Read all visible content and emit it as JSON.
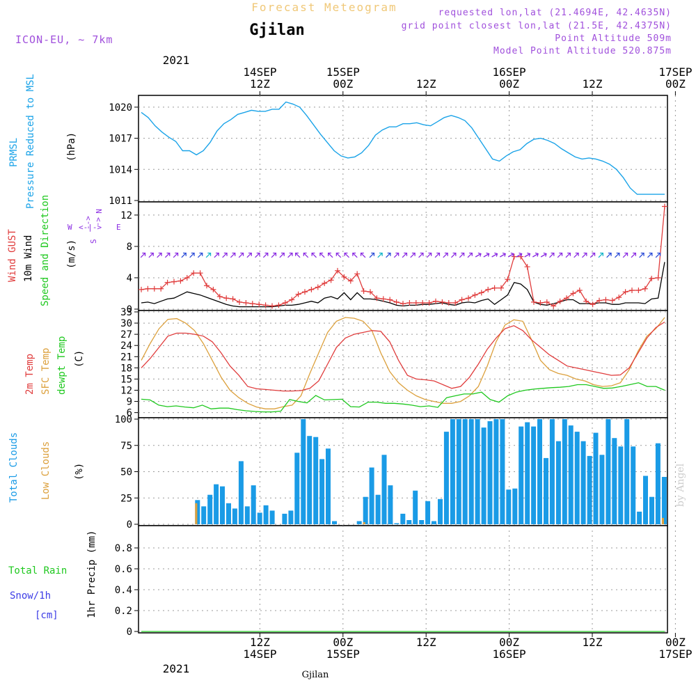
{
  "header": {
    "top_title": "Forecast Meteogram",
    "location": "Gjilan",
    "model": "ICON-EU, ~ 7km",
    "requested": "requested lon,lat (21.4694E, 42.4635N)",
    "gridpoint": "grid point closest lon,lat (21.5E, 42.4375N)",
    "point_alt": "Point Altitude 509m",
    "model_alt": "Model Point Altitude 520.875m",
    "footer_location": "Gjilan",
    "watermark": "by Angel"
  },
  "time_axis": {
    "top_year": "2021",
    "bottom_year": "2021",
    "ticks": [
      {
        "t": 12,
        "top": [
          "14SEP",
          "12Z"
        ],
        "bottom": [
          "12Z",
          "14SEP"
        ]
      },
      {
        "t": 24,
        "top": [
          "15SEP",
          "00Z"
        ],
        "bottom": [
          "00Z",
          "15SEP"
        ]
      },
      {
        "t": 36,
        "top": [
          "12Z"
        ],
        "bottom": [
          "12Z"
        ]
      },
      {
        "t": 48,
        "top": [
          "16SEP",
          "00Z"
        ],
        "bottom": [
          "00Z",
          "16SEP"
        ]
      },
      {
        "t": 60,
        "top": [
          "12Z"
        ],
        "bottom": [
          "12Z"
        ]
      },
      {
        "t": 72,
        "top": [
          "17SEP",
          "00Z"
        ],
        "bottom": [
          "00Z",
          "17SEP"
        ]
      }
    ]
  },
  "panel_labels": {
    "prmsl": [
      "PRMSL",
      "Pressure Reduced to MSL"
    ],
    "prmsl_unit": "(hPa)",
    "wind_gust": "Wind GUST",
    "wind_10m": "10m Wind",
    "wind_dir": "Speed and Direction",
    "wind_unit": "(m/s)",
    "compass_ns": [
      "N",
      "<-",
      "-->",
      "S"
    ],
    "compass_we": [
      "W",
      "<-|->",
      "E"
    ],
    "temp_2m": "2m Temp",
    "temp_sfc": "SFC Temp",
    "temp_dew": "dewpt Temp",
    "temp_unit": "(C)",
    "clouds_total": "Total Clouds",
    "clouds_low": "Low Clouds",
    "clouds_unit": "(%)",
    "rain_total": "Total  Rain",
    "snow": "Snow/1h",
    "snow_unit": "[cm]",
    "precip_unit": "1hr Precip (mm)"
  },
  "colors": {
    "pressure": "#1aa3e8",
    "gust": "#e03c3c",
    "wind": "#000000",
    "arrow_purple": "#8a2be2",
    "arrow_blue": "#2a4bd7",
    "arrow_cyan": "#13b5c8",
    "temp2m": "#e03c3c",
    "sfc": "#dca03c",
    "dew": "#1ec81e",
    "total_clouds": "#1a9be6",
    "low_clouds": "#dca03c",
    "rain": "#1ec81e",
    "snow": "#3c3ce6",
    "header_purple": "#a050dc",
    "header_orange": "#f0c878"
  },
  "chart_data": [
    {
      "type": "line",
      "series": [
        {
          "name": "PRMSL",
          "x": [
            0,
            1,
            2,
            3,
            4,
            5,
            6,
            7,
            8,
            9,
            10,
            11,
            12,
            13,
            14,
            15,
            16,
            17,
            18,
            19,
            20,
            21,
            22,
            23,
            24,
            25,
            26,
            27,
            28,
            29,
            30,
            31,
            32,
            33,
            34,
            35,
            36,
            37,
            38,
            39,
            40,
            41,
            42,
            43,
            44,
            45,
            46,
            47,
            48,
            49,
            50,
            51,
            52,
            53,
            54,
            55,
            56,
            57,
            58,
            59,
            60,
            61,
            62,
            63,
            64,
            65,
            66,
            67,
            68,
            69,
            70,
            71,
            72,
            73,
            74,
            75,
            76
          ],
          "values": [
            1019.5,
            1019.0,
            1018.2,
            1017.6,
            1017.1,
            1016.7,
            1015.8,
            1015.8,
            1015.4,
            1015.8,
            1016.6,
            1017.7,
            1018.4,
            1018.8,
            1019.3,
            1019.5,
            1019.7,
            1019.6,
            1019.6,
            1019.8,
            1019.8,
            1020.5,
            1020.3,
            1020.0,
            1019.2,
            1018.3,
            1017.4,
            1016.6,
            1015.8,
            1015.3,
            1015.1,
            1015.2,
            1015.6,
            1016.3,
            1017.3,
            1017.8,
            1018.1,
            1018.1,
            1018.4,
            1018.4,
            1018.5,
            1018.3,
            1018.2,
            1018.6,
            1019.0,
            1019.2,
            1019.0,
            1018.7,
            1018.0,
            1017.0,
            1016.0,
            1015.0,
            1014.8,
            1015.3,
            1015.7,
            1015.9,
            1016.5,
            1016.9,
            1017.0,
            1016.8,
            1016.5,
            1016.0,
            1015.6,
            1015.2,
            1015.0,
            1015.1,
            1015.0,
            1014.8,
            1014.5,
            1014.0,
            1013.2,
            1012.2,
            1011.6,
            1011.6,
            1011.6,
            1011.6,
            1011.6
          ]
        }
      ],
      "ylim": [
        1011,
        1021
      ],
      "yticks": [
        1011,
        1014,
        1017,
        1020
      ]
    },
    {
      "type": "line",
      "series": [
        {
          "name": "Wind GUST",
          "values": [
            2.5,
            2.6,
            2.6,
            2.6,
            3.4,
            3.5,
            3.6,
            4.0,
            4.6,
            4.6,
            3.0,
            2.5,
            1.6,
            1.4,
            1.3,
            0.9,
            0.8,
            0.7,
            0.6,
            0.5,
            0.4,
            0.5,
            0.8,
            1.2,
            1.9,
            2.2,
            2.5,
            2.8,
            3.3,
            3.7,
            4.9,
            4.1,
            3.6,
            4.5,
            2.3,
            2.2,
            1.4,
            1.3,
            1.2,
            0.9,
            0.7,
            0.8,
            0.8,
            0.8,
            0.8,
            1.0,
            0.9,
            0.8,
            0.8,
            1.2,
            1.4,
            1.8,
            2.1,
            2.5,
            2.7,
            2.7,
            3.8,
            6.7,
            6.7,
            5.4,
            0.9,
            0.8,
            0.9,
            0.4,
            1.0,
            1.4,
            2.0,
            2.4,
            1.0,
            0.6,
            1.1,
            1.2,
            1.1,
            1.5,
            2.2,
            2.4,
            2.4,
            2.6,
            3.9,
            4.0,
            13.1
          ]
        },
        {
          "name": "10m Wind",
          "values": [
            0.8,
            0.9,
            0.7,
            1.0,
            1.3,
            1.4,
            1.8,
            2.2,
            2.0,
            1.8,
            1.5,
            1.2,
            0.9,
            0.6,
            0.4,
            0.3,
            0.3,
            0.3,
            0.3,
            0.3,
            0.3,
            0.4,
            0.5,
            0.5,
            0.6,
            0.8,
            1.0,
            0.8,
            1.4,
            1.6,
            1.3,
            2.1,
            1.2,
            2.1,
            1.3,
            1.3,
            1.2,
            1.0,
            0.8,
            0.5,
            0.4,
            0.5,
            0.5,
            0.6,
            0.6,
            0.7,
            0.8,
            0.6,
            0.5,
            0.8,
            0.9,
            0.8,
            1.1,
            1.3,
            0.6,
            1.2,
            1.8,
            3.4,
            3.2,
            2.5,
            0.9,
            0.6,
            0.5,
            0.7,
            0.9,
            1.2,
            1.2,
            0.7,
            0.7,
            0.7,
            0.8,
            0.8,
            0.6,
            0.6,
            0.8,
            0.8,
            0.8,
            0.7,
            1.3,
            1.4,
            6.0
          ]
        }
      ],
      "ylim": [
        0,
        13.5
      ],
      "yticks": [
        0,
        4,
        8,
        12
      ]
    },
    {
      "type": "line",
      "series": [
        {
          "name": "2m Temp",
          "values": [
            18.0,
            20.5,
            23.5,
            26.5,
            27.3,
            27.3,
            27.0,
            26.5,
            25.0,
            22.0,
            18.5,
            16.0,
            13.0,
            12.4,
            12.2,
            12.0,
            11.8,
            11.8,
            11.9,
            12.5,
            14.5,
            19.0,
            23.5,
            26.0,
            27.0,
            27.5,
            28.0,
            27.8,
            25.0,
            20.0,
            16.0,
            15.0,
            14.8,
            14.5,
            13.5,
            12.5,
            13.0,
            15.5,
            19.0,
            23.0,
            26.0,
            28.5,
            29.3,
            28.0,
            25.5,
            23.5,
            21.5,
            20.0,
            18.5,
            18.0,
            17.5,
            17.0,
            16.5,
            16.0,
            16.1,
            18.0,
            22.0,
            26.0,
            28.8,
            30.3
          ]
        },
        {
          "name": "SFC Temp",
          "values": [
            20.0,
            24.5,
            28.5,
            31.0,
            31.2,
            30.0,
            28.0,
            24.5,
            20.0,
            15.5,
            12.0,
            10.0,
            8.5,
            7.5,
            7.0,
            7.0,
            7.6,
            8.0,
            10.5,
            16.5,
            22.0,
            27.5,
            30.5,
            31.5,
            31.3,
            30.5,
            28.0,
            22.0,
            17.0,
            14.0,
            12.0,
            10.5,
            9.5,
            9.0,
            8.5,
            8.5,
            9.0,
            10.5,
            13.0,
            18.5,
            25.0,
            29.5,
            30.9,
            30.5,
            25.5,
            20.0,
            17.5,
            16.5,
            16.0,
            15.0,
            14.5,
            13.5,
            13.0,
            13.2,
            14.0,
            17.5,
            22.5,
            26.5,
            28.5,
            31.5
          ]
        },
        {
          "name": "dewpt Temp",
          "values": [
            9.6,
            9.4,
            8.0,
            7.6,
            7.8,
            7.5,
            7.3,
            8.0,
            7.0,
            7.2,
            7.2,
            6.8,
            6.5,
            6.3,
            6.2,
            6.2,
            6.4,
            9.5,
            9.0,
            8.6,
            10.6,
            9.4,
            9.5,
            9.6,
            7.6,
            7.5,
            8.8,
            8.8,
            8.5,
            8.5,
            8.3,
            8.0,
            7.6,
            7.8,
            7.4,
            10.0,
            10.5,
            11.0,
            11.0,
            11.5,
            9.5,
            8.8,
            10.5,
            11.5,
            12.0,
            12.3,
            12.5,
            12.7,
            12.8,
            13.0,
            13.5,
            13.5,
            13.0,
            12.5,
            12.6,
            13.0,
            13.5,
            14.0,
            13.0,
            13.0,
            12.0
          ]
        }
      ],
      "ylim": [
        5,
        33
      ],
      "yticks": [
        6,
        9,
        12,
        15,
        18,
        21,
        24,
        27,
        30,
        33
      ]
    },
    {
      "type": "bar",
      "series": [
        {
          "name": "Total Clouds",
          "values": [
            0,
            0,
            0,
            0,
            0,
            0,
            0,
            0,
            0,
            23,
            17,
            28,
            38,
            36,
            20,
            15,
            60,
            17,
            37,
            11,
            18,
            13,
            0,
            10,
            13,
            68,
            100,
            84,
            83,
            62,
            72,
            3,
            0,
            0,
            0,
            3,
            26,
            54,
            28,
            66,
            37,
            1,
            10,
            4,
            32,
            4,
            22,
            3,
            24,
            88,
            100,
            100,
            100,
            100,
            100,
            92,
            98,
            100,
            100,
            33,
            34,
            93,
            97,
            93,
            100,
            63,
            100,
            79,
            100,
            94,
            88,
            79,
            65,
            87,
            66,
            100,
            82,
            74,
            100,
            74,
            12,
            46,
            26,
            77,
            45
          ]
        },
        {
          "name": "Low Clouds",
          "values": [
            0,
            0,
            0,
            0,
            0,
            0,
            0,
            0,
            0,
            20,
            0,
            0,
            0,
            0,
            0,
            0,
            0,
            0,
            0,
            0,
            0,
            0,
            0,
            0,
            0,
            0,
            0,
            0,
            0,
            0,
            0,
            0,
            0,
            0,
            0,
            0,
            2,
            0,
            0,
            0,
            0,
            0,
            0,
            0,
            0,
            0,
            0,
            0,
            0,
            0,
            0,
            0,
            0,
            0,
            0,
            0,
            0,
            0,
            0,
            0,
            0,
            0,
            0,
            0,
            0,
            0,
            0,
            0,
            0,
            0,
            0,
            0,
            0,
            0,
            0,
            0,
            0,
            0,
            0,
            0,
            0,
            0,
            0,
            0,
            6
          ]
        }
      ],
      "ylim": [
        0,
        100
      ],
      "yticks": [
        0,
        25,
        50,
        75,
        100
      ]
    },
    {
      "type": "bar",
      "series": [
        {
          "name": "Total Rain",
          "values": [
            0,
            0,
            0,
            0,
            0,
            0,
            0,
            0,
            0,
            0,
            0,
            0,
            0,
            0,
            0,
            0,
            0,
            0,
            0,
            0,
            0,
            0,
            0,
            0,
            0,
            0,
            0,
            0,
            0,
            0,
            0,
            0,
            0,
            0,
            0,
            0,
            0,
            0,
            0,
            0,
            0,
            0,
            0,
            0,
            0,
            0,
            0,
            0,
            0,
            0,
            0,
            0,
            0,
            0,
            0,
            0,
            0,
            0,
            0,
            0,
            0,
            0,
            0,
            0,
            0,
            0,
            0,
            0,
            0,
            0,
            0,
            0,
            0,
            0,
            0,
            0,
            0
          ]
        }
      ],
      "ylim": [
        0,
        1.0
      ],
      "yticks": [
        0,
        0.2,
        0.4,
        0.6,
        0.8
      ]
    }
  ]
}
